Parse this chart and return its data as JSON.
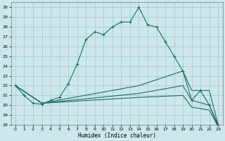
{
  "title": "",
  "xlabel": "Humidex (Indice chaleur)",
  "bg_color": "#cde8ec",
  "grid_color": "#aacccc",
  "line_color": "#1a6b6b",
  "xlim": [
    -0.5,
    23.5
  ],
  "ylim": [
    18,
    30.5
  ],
  "yticks": [
    18,
    19,
    20,
    21,
    22,
    23,
    24,
    25,
    26,
    27,
    28,
    29,
    30
  ],
  "xticks": [
    0,
    1,
    2,
    3,
    4,
    5,
    6,
    7,
    8,
    9,
    10,
    11,
    12,
    13,
    14,
    15,
    16,
    17,
    18,
    19,
    20,
    21,
    22,
    23
  ],
  "lines": [
    {
      "x": [
        0,
        1,
        2,
        3,
        4,
        5,
        6,
        7,
        8,
        9,
        10,
        11,
        12,
        13,
        14,
        15,
        16,
        17,
        18,
        19,
        20,
        21,
        22,
        23
      ],
      "y": [
        22,
        21,
        20.2,
        20.1,
        20.5,
        20.8,
        22.2,
        24.2,
        26.7,
        27.5,
        27.2,
        28.0,
        28.5,
        28.5,
        30.0,
        28.2,
        28.0,
        26.5,
        25.0,
        23.5,
        20.5,
        21.5,
        20.0,
        18.0
      ],
      "marker": true
    },
    {
      "x": [
        0,
        3,
        14,
        19,
        20,
        22,
        23
      ],
      "y": [
        22,
        20.2,
        22.0,
        23.5,
        21.5,
        21.5,
        18.0
      ],
      "marker": false
    },
    {
      "x": [
        0,
        3,
        14,
        19,
        20,
        22,
        23
      ],
      "y": [
        22,
        20.2,
        21.2,
        22.0,
        20.5,
        20.0,
        17.8
      ],
      "marker": false
    },
    {
      "x": [
        0,
        3,
        14,
        19,
        20,
        22,
        23
      ],
      "y": [
        22,
        20.2,
        20.8,
        21.0,
        19.8,
        19.5,
        17.8
      ],
      "marker": false
    }
  ]
}
